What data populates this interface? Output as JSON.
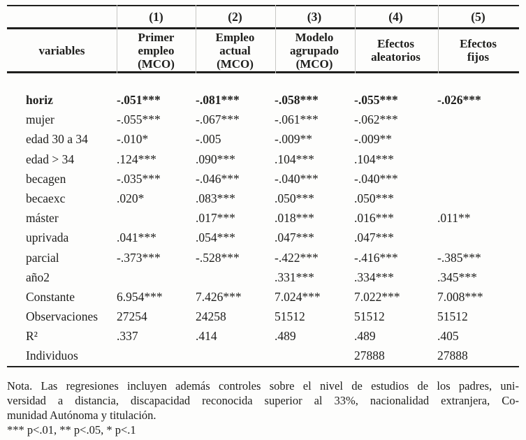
{
  "colors": {
    "text": "#1e1e1c",
    "rule": "#1f1f1d",
    "column_separator": "#c7c7c4",
    "background": "#fdfdfc"
  },
  "table": {
    "column_numbers": [
      "(1)",
      "(2)",
      "(3)",
      "(4)",
      "(5)"
    ],
    "variables_header": "variables",
    "column_headers": [
      "Primer\nempleo\n(MCO)",
      "Empleo\nactual\n(MCO)",
      "Modelo\nagrupado\n(MCO)",
      "Efectos\naleatorios",
      "Efectos\nfijos"
    ],
    "rows": [
      {
        "label": "horiz",
        "bold": true,
        "values": [
          "-.051***",
          "-.081***",
          "-.058***",
          "-.055***",
          "-.026***"
        ]
      },
      {
        "label": "mujer",
        "bold": false,
        "values": [
          "-.055***",
          "-.067***",
          "-.061***",
          "-.062***",
          ""
        ]
      },
      {
        "label": "edad 30 a 34",
        "bold": false,
        "values": [
          "-.010*",
          "-.005",
          "-.009**",
          "-.009**",
          ""
        ]
      },
      {
        "label": "edad > 34",
        "bold": false,
        "values": [
          ".124***",
          ".090***",
          ".104***",
          ".104***",
          ""
        ]
      },
      {
        "label": "becagen",
        "bold": false,
        "values": [
          "-.035***",
          "-.046***",
          "-.040***",
          "-.040***",
          ""
        ]
      },
      {
        "label": "becaexc",
        "bold": false,
        "values": [
          ".020*",
          ".083***",
          ".050***",
          ".050***",
          ""
        ]
      },
      {
        "label": "máster",
        "bold": false,
        "values": [
          "",
          ".017***",
          ".018***",
          ".016***",
          ".011**"
        ]
      },
      {
        "label": "uprivada",
        "bold": false,
        "values": [
          ".041***",
          ".054***",
          ".047***",
          ".047***",
          ""
        ]
      },
      {
        "label": "parcial",
        "bold": false,
        "values": [
          "-.373***",
          "-.528***",
          "-.422***",
          "-.416***",
          "-.385***"
        ]
      },
      {
        "label": "año2",
        "bold": false,
        "values": [
          "",
          "",
          ".331***",
          ".334***",
          ".345***"
        ]
      },
      {
        "label": "Constante",
        "bold": false,
        "values": [
          "6.954***",
          "7.426***",
          "7.024***",
          "7.022***",
          "7.008***"
        ]
      },
      {
        "label": "Observaciones",
        "bold": false,
        "values": [
          "27254",
          "24258",
          "51512",
          "51512",
          "51512"
        ]
      },
      {
        "label": "R²",
        "bold": false,
        "values": [
          ".337",
          ".414",
          ".489",
          ".489",
          ".405"
        ]
      },
      {
        "label": "Individuos",
        "bold": false,
        "values": [
          "",
          "",
          "",
          "27888",
          "27888"
        ]
      }
    ]
  },
  "notes": {
    "lines": [
      {
        "text": "Nota. Las regresiones incluyen además controles sobre el nivel de estudios de los padres, uni-",
        "justify": true
      },
      {
        "text": "versidad a distancia, discapacidad reconocida superior al 33%, nacionalidad extranjera, Co-",
        "justify": true
      },
      {
        "text": "munidad Autónoma y titulación.",
        "justify": false
      },
      {
        "text": "*** p<.01, ** p<.05, * p<.1",
        "justify": false
      }
    ]
  }
}
